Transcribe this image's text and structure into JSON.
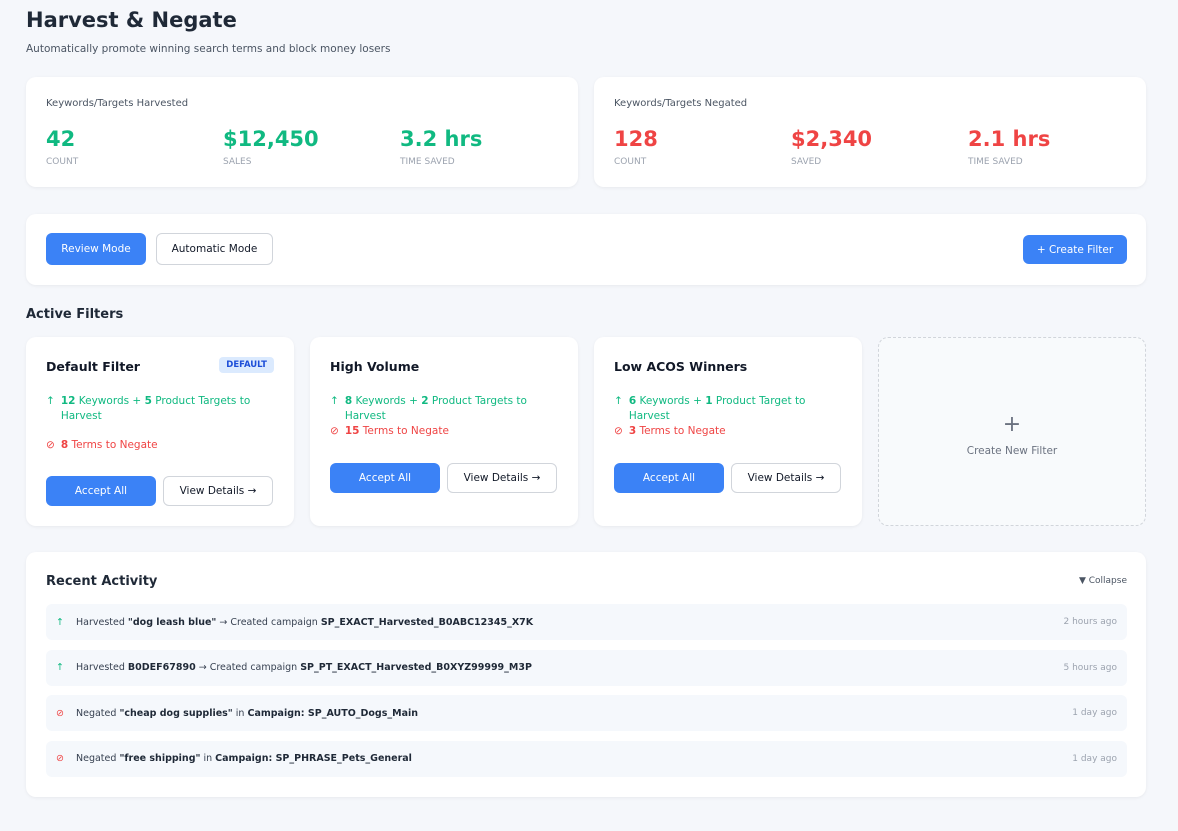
{
  "header": {
    "title": "Harvest & Negate",
    "subtitle": "Automatically promote winning search terms and block money losers"
  },
  "harvested": {
    "title": "Keywords/Targets Harvested",
    "stats": [
      {
        "value": "42",
        "label": "COUNT"
      },
      {
        "value": "$12,450",
        "label": "SALES"
      },
      {
        "value": "3.2 hrs",
        "label": "TIME SAVED"
      }
    ]
  },
  "negated": {
    "title": "Keywords/Targets Negated",
    "stats": [
      {
        "value": "128",
        "label": "COUNT"
      },
      {
        "value": "$2,340",
        "label": "SAVED"
      },
      {
        "value": "2.1 hrs",
        "label": "TIME SAVED"
      }
    ]
  },
  "modes": {
    "review": "Review Mode",
    "automatic": "Automatic Mode",
    "create": "+ Create Filter",
    "active": "review"
  },
  "filters_title": "Active Filters",
  "filters": [
    {
      "name": "Default Filter",
      "badge": "DEFAULT",
      "harvest": [
        {
          "t": "12",
          "b": true
        },
        {
          "t": " Keywords + "
        },
        {
          "t": "5",
          "b": true
        },
        {
          "t": " Product Targets to Harvest"
        }
      ],
      "negate": [
        {
          "t": "8",
          "b": true
        },
        {
          "t": " Terms to Negate"
        }
      ],
      "accept": "Accept All",
      "details": "View Details →"
    },
    {
      "name": "High Volume",
      "harvest": [
        {
          "t": "8",
          "b": true
        },
        {
          "t": " Keywords + "
        },
        {
          "t": "2",
          "b": true
        },
        {
          "t": " Product Targets to Harvest"
        }
      ],
      "negate": [
        {
          "t": "15",
          "b": true
        },
        {
          "t": " Terms to Negate"
        }
      ],
      "accept": "Accept All",
      "details": "View Details →"
    },
    {
      "name": "Low ACOS Winners",
      "harvest": [
        {
          "t": "6",
          "b": true
        },
        {
          "t": " Keywords + "
        },
        {
          "t": "1",
          "b": true
        },
        {
          "t": " Product Target to Harvest"
        }
      ],
      "negate": [
        {
          "t": "3",
          "b": true
        },
        {
          "t": " Terms to Negate"
        }
      ],
      "accept": "Accept All",
      "details": "View Details →"
    }
  ],
  "new_filter": {
    "icon": "+",
    "label": "Create New Filter"
  },
  "activity": {
    "title": "Recent Activity",
    "collapse": "▼ Collapse",
    "items": [
      {
        "type": "harvest",
        "parts": [
          {
            "t": "Harvested "
          },
          {
            "t": "\"dog leash blue\"",
            "b": true
          },
          {
            "t": " → Created campaign "
          },
          {
            "t": "SP_EXACT_Harvested_B0ABC12345_X7K",
            "b": true
          }
        ],
        "time": "2 hours ago"
      },
      {
        "type": "harvest",
        "parts": [
          {
            "t": "Harvested "
          },
          {
            "t": "B0DEF67890",
            "b": true
          },
          {
            "t": " → Created campaign "
          },
          {
            "t": "SP_PT_EXACT_Harvested_B0XYZ99999_M3P",
            "b": true
          }
        ],
        "time": "5 hours ago"
      },
      {
        "type": "negate",
        "parts": [
          {
            "t": "Negated "
          },
          {
            "t": "\"cheap dog supplies\"",
            "b": true
          },
          {
            "t": " in "
          },
          {
            "t": "Campaign: SP_AUTO_Dogs_Main",
            "b": true
          }
        ],
        "time": "1 day ago"
      },
      {
        "type": "negate",
        "parts": [
          {
            "t": "Negated "
          },
          {
            "t": "\"free shipping\"",
            "b": true
          },
          {
            "t": " in "
          },
          {
            "t": "Campaign: SP_PHRASE_Pets_General",
            "b": true
          }
        ],
        "time": "1 day ago"
      }
    ]
  },
  "icons": {
    "harvest": "↑",
    "negate": "⊘"
  },
  "colors": {
    "accent": "#3b82f6",
    "green": "#10b981",
    "red": "#ef4444"
  }
}
